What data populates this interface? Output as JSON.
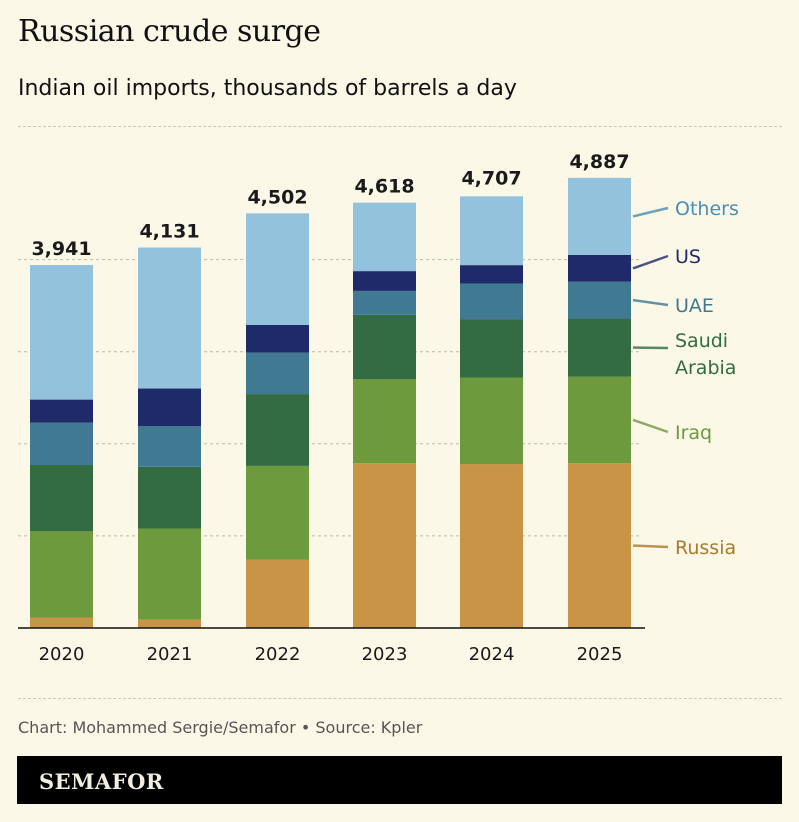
{
  "chart_data": {
    "type": "bar",
    "stacked": true,
    "title": "Russian crude surge",
    "subtitle": "Indian oil imports, thousands of barrels a day",
    "categories": [
      "2020",
      "2021",
      "2022",
      "2023",
      "2024",
      "2025"
    ],
    "totals": [
      "3,941",
      "4,131",
      "4,502",
      "4,618",
      "4,707",
      "4,887"
    ],
    "ylim": [
      0,
      5000
    ],
    "gridlines": [
      1000,
      2000,
      3000,
      4000
    ],
    "grid": true,
    "legend_placement": "right, direct labels",
    "series": [
      {
        "name": "Russia",
        "color": "#c99446",
        "label_color": "#a97a2e",
        "values": [
          110,
          90,
          740,
          1790,
          1780,
          1790
        ]
      },
      {
        "name": "Iraq",
        "color": "#6c9a3d",
        "label_color": "#6c9a3d",
        "values": [
          940,
          990,
          1020,
          910,
          940,
          940
        ]
      },
      {
        "name": "Saudi Arabia",
        "label_lines": [
          "Saudi",
          "Arabia"
        ],
        "color": "#336b43",
        "label_color": "#336b43",
        "values": [
          720,
          670,
          780,
          700,
          630,
          630
        ]
      },
      {
        "name": "UAE",
        "color": "#3f7a92",
        "label_color": "#3f7a92",
        "values": [
          460,
          440,
          450,
          260,
          390,
          400
        ]
      },
      {
        "name": "US",
        "color": "#1f2a6b",
        "label_color": "#1f2a6b",
        "values": [
          250,
          410,
          300,
          215,
          200,
          290
        ]
      },
      {
        "name": "Others",
        "color": "#93c2dc",
        "label_color": "#4b8db0",
        "values": [
          1461,
          1531,
          1212,
          743,
          747,
          837
        ]
      }
    ]
  },
  "footer": {
    "credit": "Chart: Mohammed Sergie/Semafor • Source: Kpler",
    "logo": "SEMAFOR"
  }
}
